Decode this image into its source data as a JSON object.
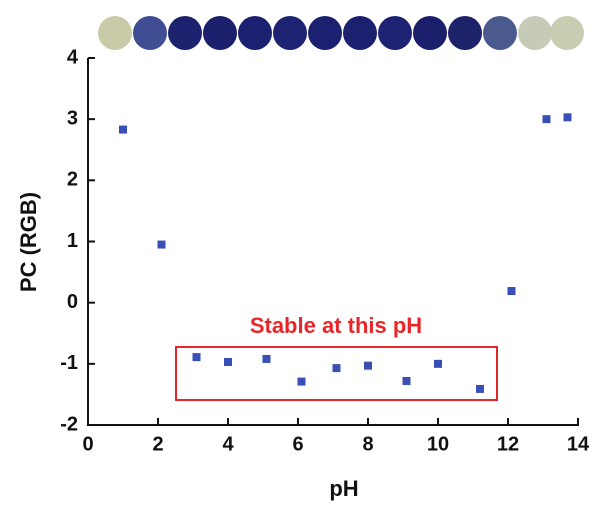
{
  "chart_data": {
    "type": "scatter",
    "x_label": "pH",
    "y_label": "PC (RGB)",
    "annotation": "Stable at this pH",
    "series": [
      {
        "color": "#3a4fb5",
        "x": [
          1.0,
          2.1,
          3.1,
          4.0,
          5.1,
          6.1,
          7.1,
          8.0,
          9.1,
          10.0,
          11.2,
          12.1,
          13.1,
          13.7
        ],
        "values": [
          2.83,
          0.95,
          -0.89,
          -0.97,
          -0.92,
          -1.29,
          -1.07,
          -1.03,
          -1.28,
          -1.0,
          -1.41,
          0.19,
          3.0,
          3.03
        ]
      }
    ],
    "xlim": [
      0,
      14
    ],
    "xticks": [
      0,
      2,
      4,
      6,
      8,
      10,
      12,
      14
    ],
    "ylim": [
      -2,
      4
    ],
    "yticks": [
      -2,
      -1,
      0,
      1,
      2,
      3,
      4
    ]
  }
}
